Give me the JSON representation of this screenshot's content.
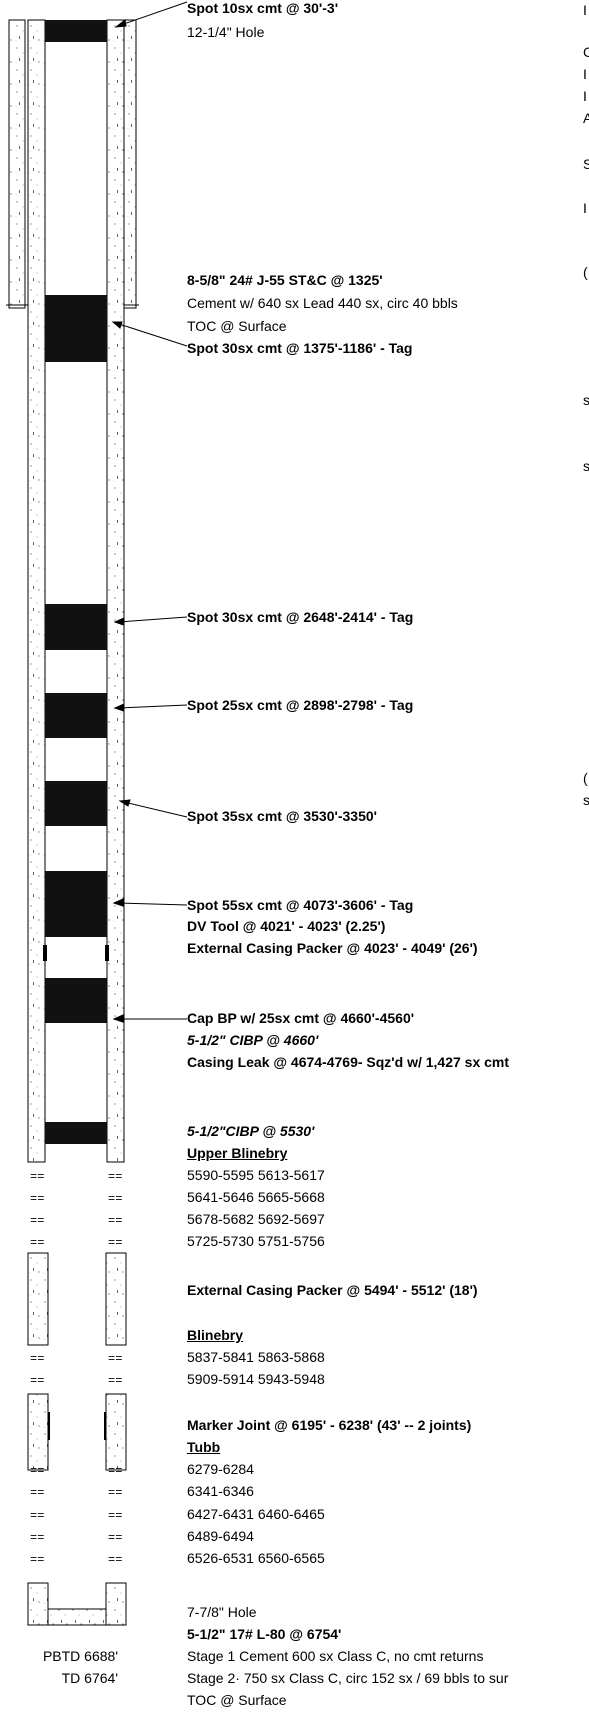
{
  "colors": {
    "ink": "#000000",
    "cement": "#111111",
    "background": "#ffffff"
  },
  "labels": {
    "spot10": "Spot 10sx cmt @ 30'-3'",
    "hole1": "12-1/4\" Hole",
    "surface_casing": "8-5/8\" 24# J-55 ST&C @ 1325'",
    "surface_cement": "Cement w/ 640 sx Lead 440 sx, circ 40 bbls",
    "surface_toc": "TOC @ Surface",
    "spot30a": "Spot 30sx cmt @ 1375'-1186' - Tag",
    "spot30b": "Spot 30sx cmt @ 2648'-2414' - Tag",
    "spot25": "Spot 25sx cmt @ 2898'-2798' - Tag",
    "spot35": "Spot 35sx cmt @ 3530'-3350'",
    "spot55": "Spot 55sx cmt @ 4073'-3606' - Tag",
    "dv_tool": "DV Tool @ 4021' - 4023'    (2.25')",
    "ecp1": "External Casing Packer @ 4023' - 4049'   (26')",
    "cap_bp": "Cap BP w/ 25sx cmt @ 4660'-4560'",
    "cibp_4660": "5-1/2\" CIBP @ 4660'",
    "casing_leak": "Casing Leak @ 4674-4769- Sqz'd w/ 1,427 sx cmt",
    "cibp_5530": "5-1/2\"CIBP @ 5530'",
    "upper_blinebry": "Upper Blinebry",
    "upper_blinebry_perfs": [
      "5590-5595  5613-5617",
      "5641-5646  5665-5668",
      "5678-5682  5692-5697",
      "5725-5730  5751-5756"
    ],
    "ecp2": "External Casing Packer @ 5494' - 5512'    (18')",
    "blinebry": "Blinebry",
    "blinebry_perfs": [
      "5837-5841  5863-5868",
      "5909-5914  5943-5948"
    ],
    "marker_joint": "Marker Joint @ 6195' - 6238'  (43'  --  2 joints)",
    "tubb": "Tubb",
    "tubb_perfs": [
      "6279-6284",
      "6341-6346",
      "6427-6431  6460-6465",
      "6489-6494",
      "6526-6531  6560-6565"
    ],
    "hole2": "7-7/8\" Hole",
    "prod_casing": "5-1/2\" 17# L-80 @ 6754'",
    "stage1": "Stage 1   Cement  600 sx Class C, no cmt returns",
    "stage2": "Stage 2·  750 sx  Class C, circ 152 sx / 69 bbls to sur",
    "prod_toc": "TOC @ Surface",
    "pbtd": "PBTD  6688'",
    "td": "TD  6764'",
    "perf_mark": "=="
  },
  "right_edge_glyphs": [
    "I",
    "C",
    "I",
    "I",
    "A",
    "S",
    "I",
    "(",
    "s",
    "s",
    "(",
    "s"
  ]
}
